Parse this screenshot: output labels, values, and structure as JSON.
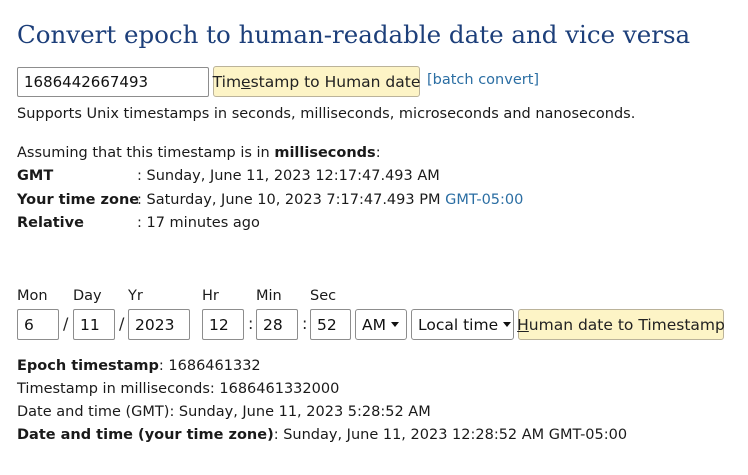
{
  "page": {
    "title": "Convert epoch to human-readable date and vice versa"
  },
  "timestamp_form": {
    "input_value": "1686442667493",
    "convert_button_pre": "Tim",
    "convert_button_access_key": "e",
    "convert_button_post": "stamp to Human date",
    "batch_link": "[batch convert]",
    "support_note": "Supports Unix timestamps in seconds, milliseconds, microseconds and nanoseconds."
  },
  "result": {
    "assume_prefix": "Assuming that this timestamp is in ",
    "assume_unit": "milliseconds",
    "assume_suffix": ":",
    "gmt_label": "GMT",
    "gmt_value": ": Sunday, June 11, 2023 12:17:47.493 AM",
    "local_label": "Your time zone",
    "local_value": ": Saturday, June 10, 2023 7:17:47.493 PM",
    "local_tz_link": "GMT-05:00",
    "relative_label": "Relative",
    "relative_value": ": 17 minutes ago"
  },
  "date_form": {
    "labels": {
      "mon": "Mon",
      "day": "Day",
      "yr": "Yr",
      "hr": "Hr",
      "min": "Min",
      "sec": "Sec"
    },
    "values": {
      "mon": "6",
      "day": "11",
      "yr": "2023",
      "hr": "12",
      "min": "28",
      "sec": "52"
    },
    "date_sep": "/",
    "time_sep": ":",
    "ampm": "AM",
    "timezone": "Local time",
    "button_access_key": "H",
    "button_post": "uman date to Timestamp"
  },
  "date_result": {
    "epoch_label": "Epoch timestamp",
    "epoch_value": ": 1686461332",
    "ms_line": "Timestamp in milliseconds: 1686461332000",
    "gmt_line": "Date and time (GMT): Sunday, June 11, 2023 5:28:52 AM",
    "local_label": "Date and time (your time zone)",
    "local_value": ": Sunday, June 11, 2023 12:28:52 AM GMT-05:00"
  }
}
